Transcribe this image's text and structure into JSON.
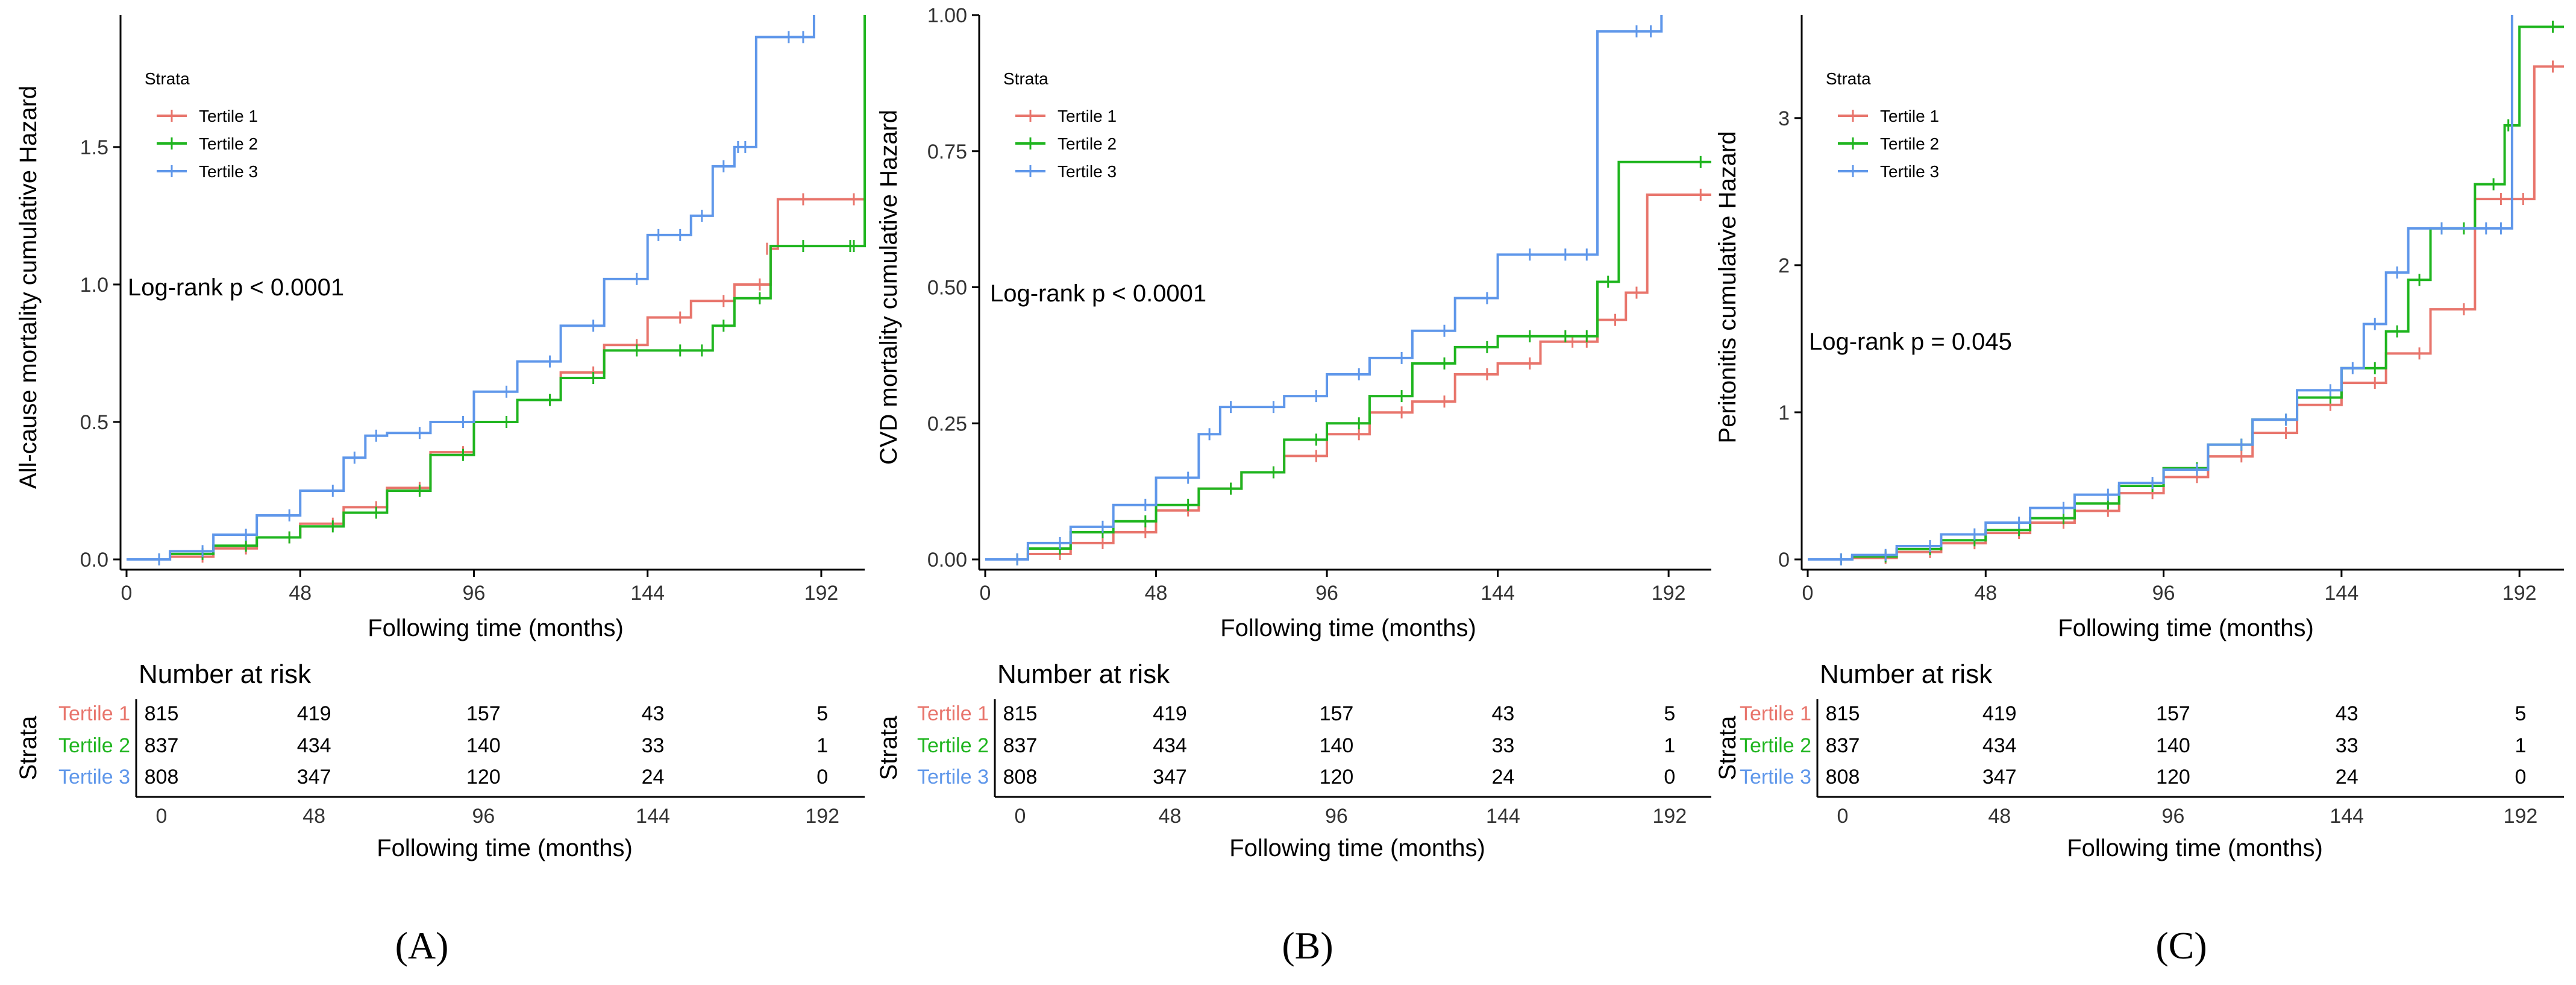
{
  "common": {
    "xlabel": "Following time (months)",
    "x_ticks": [
      0,
      48,
      96,
      144,
      192
    ],
    "xlim": [
      0,
      204
    ],
    "legend_title": "Strata",
    "risk_title": "Number at risk",
    "risk_ylabel": "Strata",
    "strata": [
      "Tertile 1",
      "Tertile 2",
      "Tertile 3"
    ],
    "colors": {
      "Tertile 1": "#e8756c",
      "Tertile 2": "#1fb51f",
      "Tertile 3": "#5f97ea"
    }
  },
  "chart_data": [
    {
      "type": "line",
      "panel_label": "(A)",
      "ylabel": "All-cause mortality cumulative Hazard",
      "ylim": [
        0,
        1.98
      ],
      "y_ticks": [
        "0.0",
        "0.5",
        "1.0",
        "1.5"
      ],
      "annotation": "Log-rank p < 0.0001",
      "series": [
        {
          "name": "Tertile 1",
          "x": [
            0,
            6,
            12,
            24,
            36,
            48,
            60,
            72,
            84,
            96,
            108,
            120,
            132,
            144,
            156,
            168,
            178,
            180,
            190,
            204
          ],
          "y": [
            0,
            0,
            0.01,
            0.04,
            0.08,
            0.13,
            0.19,
            0.26,
            0.39,
            0.5,
            0.58,
            0.68,
            0.78,
            0.88,
            0.94,
            1.0,
            1.13,
            1.31,
            1.31,
            1.31
          ]
        },
        {
          "name": "Tertile 2",
          "x": [
            0,
            6,
            12,
            24,
            36,
            48,
            60,
            72,
            84,
            96,
            108,
            120,
            132,
            144,
            156,
            162,
            168,
            178,
            190,
            203,
            204
          ],
          "y": [
            0,
            0,
            0.02,
            0.05,
            0.08,
            0.12,
            0.17,
            0.25,
            0.38,
            0.5,
            0.58,
            0.66,
            0.76,
            0.76,
            0.76,
            0.85,
            0.95,
            1.14,
            1.14,
            1.14,
            1.98
          ]
        },
        {
          "name": "Tertile 3",
          "x": [
            0,
            6,
            12,
            24,
            36,
            48,
            60,
            66,
            72,
            84,
            96,
            108,
            120,
            132,
            144,
            150,
            156,
            162,
            168,
            172,
            174,
            186,
            190
          ],
          "y": [
            0,
            0,
            0.03,
            0.09,
            0.16,
            0.25,
            0.37,
            0.45,
            0.46,
            0.5,
            0.61,
            0.72,
            0.85,
            1.02,
            1.18,
            1.18,
            1.25,
            1.43,
            1.5,
            1.5,
            1.9,
            1.9,
            1.98
          ]
        }
      ],
      "risk_table": {
        "Tertile 1": [
          815,
          419,
          157,
          43,
          5
        ],
        "Tertile 2": [
          837,
          434,
          140,
          33,
          1
        ],
        "Tertile 3": [
          808,
          347,
          120,
          24,
          0
        ]
      }
    },
    {
      "type": "line",
      "panel_label": "(B)",
      "ylabel": "CVD mortality cumulative Hazard",
      "ylim": [
        0,
        1.0
      ],
      "y_ticks": [
        "0.00",
        "0.25",
        "0.50",
        "0.75",
        "1.00"
      ],
      "annotation": "Log-rank p < 0.0001",
      "series": [
        {
          "name": "Tertile 1",
          "x": [
            0,
            6,
            12,
            24,
            36,
            48,
            60,
            72,
            84,
            96,
            108,
            120,
            132,
            144,
            156,
            168,
            172,
            180,
            186,
            204
          ],
          "y": [
            0,
            0,
            0.01,
            0.03,
            0.05,
            0.09,
            0.13,
            0.16,
            0.19,
            0.23,
            0.27,
            0.29,
            0.34,
            0.36,
            0.4,
            0.4,
            0.44,
            0.49,
            0.67,
            0.67
          ]
        },
        {
          "name": "Tertile 2",
          "x": [
            0,
            6,
            12,
            24,
            36,
            48,
            60,
            72,
            84,
            96,
            108,
            120,
            132,
            144,
            156,
            166,
            172,
            178,
            204
          ],
          "y": [
            0,
            0,
            0.02,
            0.05,
            0.07,
            0.1,
            0.13,
            0.16,
            0.22,
            0.25,
            0.3,
            0.36,
            0.39,
            0.41,
            0.41,
            0.41,
            0.51,
            0.73,
            0.73
          ]
        },
        {
          "name": "Tertile 3",
          "x": [
            0,
            6,
            12,
            24,
            36,
            48,
            60,
            66,
            72,
            84,
            96,
            108,
            120,
            132,
            144,
            156,
            166,
            172,
            186,
            190
          ],
          "y": [
            0,
            0,
            0.03,
            0.06,
            0.1,
            0.15,
            0.23,
            0.28,
            0.28,
            0.3,
            0.34,
            0.37,
            0.42,
            0.48,
            0.56,
            0.56,
            0.56,
            0.97,
            0.97,
            1.0
          ]
        }
      ],
      "risk_table": {
        "Tertile 1": [
          815,
          419,
          157,
          43,
          5
        ],
        "Tertile 2": [
          837,
          434,
          140,
          33,
          1
        ],
        "Tertile 3": [
          808,
          347,
          120,
          24,
          0
        ]
      }
    },
    {
      "type": "line",
      "panel_label": "(C)",
      "ylabel": "Peritonitis cumulative Hazard",
      "ylim": [
        0,
        3.7
      ],
      "y_ticks": [
        "0",
        "1",
        "2",
        "3"
      ],
      "annotation": "Log-rank p = 0.045",
      "series": [
        {
          "name": "Tertile 1",
          "x": [
            0,
            6,
            12,
            24,
            36,
            48,
            60,
            72,
            84,
            96,
            108,
            120,
            132,
            144,
            156,
            168,
            180,
            190,
            196,
            204
          ],
          "y": [
            0,
            0,
            0.01,
            0.05,
            0.11,
            0.18,
            0.25,
            0.33,
            0.45,
            0.56,
            0.7,
            0.86,
            1.05,
            1.2,
            1.4,
            1.7,
            2.45,
            2.45,
            3.35,
            3.35
          ]
        },
        {
          "name": "Tertile 2",
          "x": [
            0,
            6,
            12,
            24,
            36,
            48,
            60,
            72,
            84,
            96,
            108,
            120,
            132,
            144,
            156,
            162,
            168,
            174,
            180,
            188,
            192,
            204
          ],
          "y": [
            0,
            0,
            0.02,
            0.07,
            0.13,
            0.2,
            0.28,
            0.38,
            0.5,
            0.62,
            0.78,
            0.95,
            1.1,
            1.3,
            1.55,
            1.9,
            2.25,
            2.25,
            2.55,
            2.95,
            3.62,
            3.62
          ]
        },
        {
          "name": "Tertile 3",
          "x": [
            0,
            6,
            12,
            24,
            36,
            48,
            60,
            72,
            84,
            96,
            108,
            120,
            132,
            144,
            150,
            156,
            162,
            174,
            186,
            190
          ],
          "y": [
            0,
            0,
            0.03,
            0.09,
            0.17,
            0.25,
            0.35,
            0.44,
            0.52,
            0.61,
            0.78,
            0.95,
            1.15,
            1.3,
            1.6,
            1.95,
            2.25,
            2.25,
            2.25,
            3.7
          ]
        }
      ],
      "risk_table": {
        "Tertile 1": [
          815,
          419,
          157,
          43,
          5
        ],
        "Tertile 2": [
          837,
          434,
          140,
          33,
          1
        ],
        "Tertile 3": [
          808,
          347,
          120,
          24,
          0
        ]
      }
    }
  ]
}
